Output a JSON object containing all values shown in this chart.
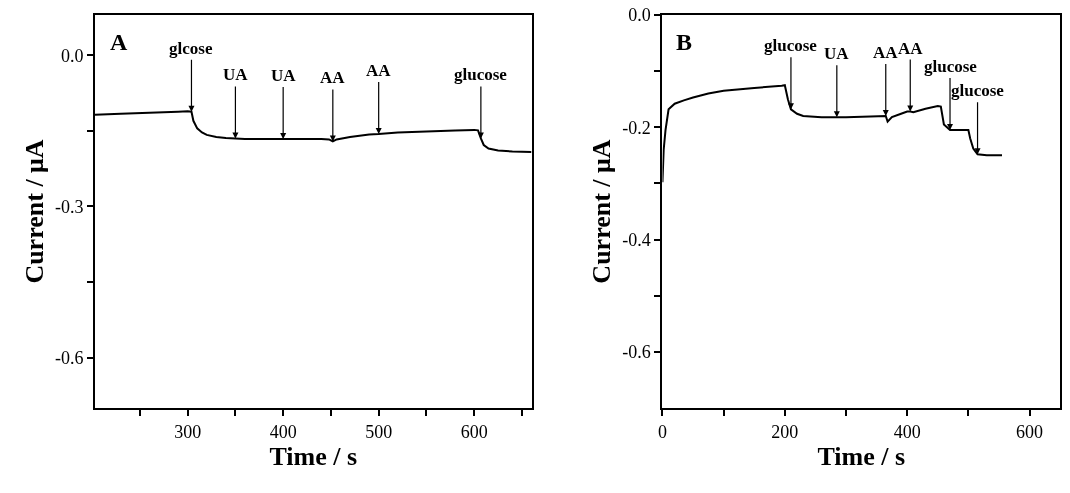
{
  "chart_data": [
    {
      "type": "line",
      "xlabel": "Time / s",
      "ylabel": "Current / μA",
      "xlim": [
        203,
        660
      ],
      "ylim": [
        -0.7,
        0.08
      ],
      "xticks": [
        {
          "value": 250,
          "label": null
        },
        300,
        {
          "value": 350,
          "label": null
        },
        400,
        {
          "value": 450,
          "label": null
        },
        500,
        {
          "value": 550,
          "label": null
        },
        600,
        {
          "value": 650,
          "label": null
        }
      ],
      "yticks": [
        {
          "value": 0,
          "label": "0.0"
        },
        {
          "value": -0.15,
          "label": null
        },
        -0.3,
        {
          "value": -0.45,
          "label": null
        },
        -0.6
      ],
      "marker": "none",
      "line_style": "solid",
      "x": [
        203,
        230,
        260,
        290,
        300,
        304,
        306,
        310,
        315,
        320,
        330,
        340,
        350,
        360,
        380,
        400,
        420,
        440,
        448,
        452,
        456,
        470,
        490,
        500,
        520,
        550,
        580,
        600,
        604,
        607,
        610,
        615,
        625,
        640,
        660
      ],
      "series": [
        {
          "color": "#000000",
          "values": [
            -0.118,
            -0.116,
            -0.114,
            -0.112,
            -0.111,
            -0.112,
            -0.13,
            -0.145,
            -0.153,
            -0.158,
            -0.162,
            -0.164,
            -0.165,
            -0.166,
            -0.166,
            -0.166,
            -0.166,
            -0.166,
            -0.167,
            -0.171,
            -0.167,
            -0.162,
            -0.157,
            -0.156,
            -0.153,
            -0.151,
            -0.149,
            -0.148,
            -0.149,
            -0.165,
            -0.178,
            -0.185,
            -0.189,
            -0.191,
            -0.192
          ]
        }
      ],
      "annotations": [
        "A",
        {
          "text": "glcose",
          "x": 304,
          "y": -0.112
        },
        {
          "text": "UA",
          "x": 350,
          "y": -0.165
        },
        {
          "text": "UA",
          "x": 400,
          "y": -0.166
        },
        {
          "text": "AA",
          "x": 452,
          "y": -0.171
        },
        {
          "text": "AA",
          "x": 500,
          "y": -0.156
        },
        {
          "text": "glucose",
          "x": 607,
          "y": -0.165
        }
      ]
    },
    {
      "type": "line",
      "xlabel": "Time / s",
      "ylabel": "Current / μA",
      "xlim": [
        0,
        650
      ],
      "ylim": [
        -0.7,
        0
      ],
      "xticks": [
        0,
        {
          "value": 100,
          "label": null
        },
        200,
        {
          "value": 300,
          "label": null
        },
        400,
        {
          "value": 500,
          "label": null
        },
        600
      ],
      "yticks": [
        {
          "value": 0,
          "label": "0.0"
        },
        {
          "value": -0.1,
          "label": null
        },
        -0.2,
        {
          "value": -0.3,
          "label": null
        },
        -0.4,
        {
          "value": -0.5,
          "label": null
        },
        -0.6
      ],
      "marker": "none",
      "line_style": "solid",
      "x": [
        0,
        2,
        5,
        10,
        20,
        35,
        50,
        75,
        100,
        150,
        195,
        200,
        205,
        210,
        220,
        230,
        260,
        285,
        300,
        340,
        365,
        368,
        375,
        390,
        400,
        405,
        410,
        430,
        450,
        455,
        460,
        470,
        485,
        500,
        503,
        508,
        515,
        530,
        555
      ],
      "series": [
        {
          "color": "#000000",
          "values": [
            -0.298,
            -0.24,
            -0.205,
            -0.168,
            -0.158,
            -0.152,
            -0.147,
            -0.14,
            -0.135,
            -0.13,
            -0.126,
            -0.125,
            -0.15,
            -0.168,
            -0.176,
            -0.18,
            -0.182,
            -0.182,
            -0.182,
            -0.181,
            -0.18,
            -0.19,
            -0.182,
            -0.176,
            -0.172,
            -0.172,
            -0.173,
            -0.167,
            -0.162,
            -0.163,
            -0.195,
            -0.205,
            -0.205,
            -0.205,
            -0.22,
            -0.238,
            -0.248,
            -0.25,
            -0.25
          ]
        }
      ],
      "annotations": [
        "B",
        {
          "text": "glucose",
          "x": 210,
          "y": -0.168
        },
        {
          "text": "UA",
          "x": 285,
          "y": -0.182
        },
        {
          "text": "AA",
          "x": 365,
          "y": -0.18
        },
        {
          "text": "AA",
          "x": 405,
          "y": -0.172
        },
        {
          "text": "glucose",
          "x": 470,
          "y": -0.205
        },
        {
          "text": "glucose",
          "x": 515,
          "y": -0.248
        }
      ]
    }
  ]
}
